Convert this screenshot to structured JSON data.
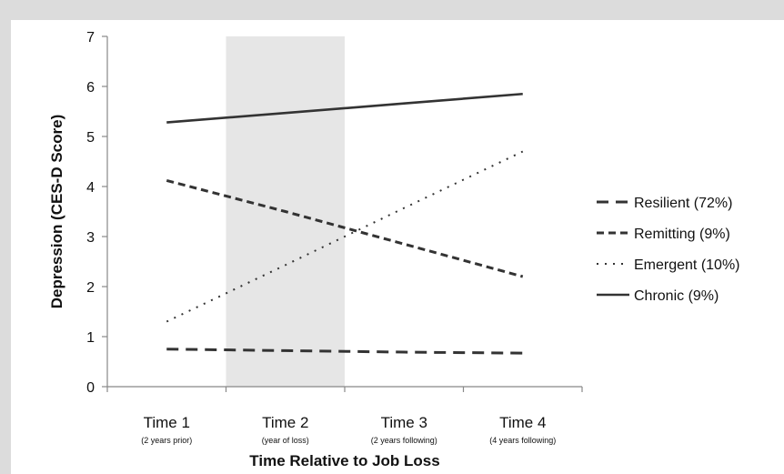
{
  "chart_data": {
    "type": "line",
    "title": "",
    "xlabel": "Time Relative to Job Loss",
    "ylabel": "Depression (CES-D Score)",
    "ylim": [
      0,
      7
    ],
    "yticks": [
      "0",
      "1",
      "2",
      "3",
      "4",
      "5",
      "6",
      "7"
    ],
    "categories": [
      "Time 1",
      "Time 2",
      "Time 3",
      "Time 4"
    ],
    "category_sublabels": [
      "(2 years prior)",
      "(year of loss)",
      "(2 years following)",
      "(4 years following)"
    ],
    "highlight_category": "Time 2",
    "highlight_color": "#e6e6e6",
    "series": [
      {
        "name": "Resilient (72%)",
        "style": "long-dash",
        "values": [
          0.75,
          0.72,
          0.69,
          0.67
        ]
      },
      {
        "name": "Remitting (9%)",
        "style": "short-dash",
        "values": [
          4.12,
          3.5,
          2.85,
          2.2
        ]
      },
      {
        "name": "Emergent (10%)",
        "style": "dotted",
        "values": [
          1.3,
          2.43,
          3.57,
          4.7
        ]
      },
      {
        "name": "Chronic (9%)",
        "style": "solid",
        "values": [
          5.28,
          5.47,
          5.66,
          5.85
        ]
      }
    ],
    "legend_position": "right",
    "grid": false
  }
}
